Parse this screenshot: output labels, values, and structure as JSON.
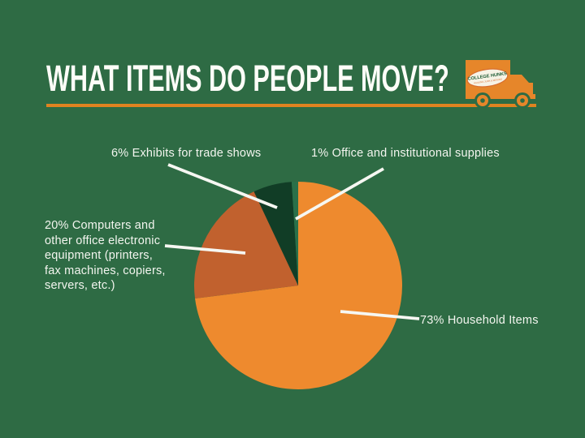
{
  "background_color": "#2E6B44",
  "header": {
    "title": "WHAT ITEMS DO PEOPLE MOVE?",
    "title_color": "#FDFDF8",
    "underline_color": "#E08320",
    "truck": {
      "icon": "box-truck-icon",
      "color": "#E6862A",
      "logo_text": "COLLEGE HUNKS",
      "logo_tagline": "HAULING JUNK & MOVING"
    }
  },
  "chart_data": {
    "type": "pie",
    "title": "What items do people move?",
    "direction": "clockwise",
    "start_angle_deg": 0,
    "legend_position": "callout-labels",
    "slices": [
      {
        "name": "household-items",
        "label": "73% Household Items",
        "value": 73,
        "color": "#EE8A2E"
      },
      {
        "name": "computers-office-electronics",
        "label": "20% Computers and other office electronic equipment (printers, fax machines, copiers, servers, etc.)",
        "value": 20,
        "color": "#C1612E"
      },
      {
        "name": "exhibits-trade-shows",
        "label": "6% Exhibits for trade shows",
        "value": 6,
        "color": "#113D26"
      },
      {
        "name": "office-institutional-supplies",
        "label": "1% Office and institutional supplies",
        "value": 1,
        "color": "#2A7049"
      }
    ]
  },
  "callouts": {
    "exhibits": "6% Exhibits for trade shows",
    "office": "1% Office and institutional supplies",
    "computers": "20% Computers and\nother office electronic\nequipment (printers,\nfax machines, copiers,\nservers, etc.)",
    "household": "73% Household Items"
  }
}
